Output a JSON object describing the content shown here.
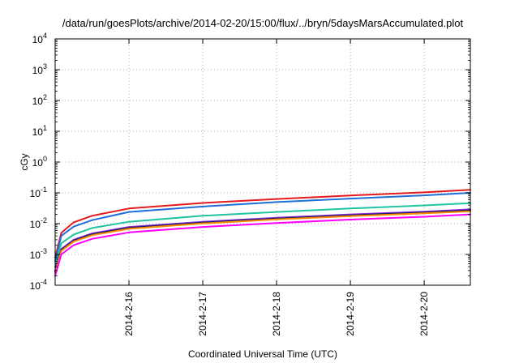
{
  "chart_data": {
    "type": "line",
    "title": "/data/run/goesPlots/archive/2014-02-20/15:00/flux/../bryn/5daysMarsAccumulated.plot",
    "xlabel": "Coordinated Universal Time (UTC)",
    "ylabel": "cGy",
    "yscale": "log",
    "ylim": [
      0.0001,
      10000
    ],
    "y_ticks": [
      {
        "base": "10",
        "exp": "-4"
      },
      {
        "base": "10",
        "exp": "-3"
      },
      {
        "base": "10",
        "exp": "-2"
      },
      {
        "base": "10",
        "exp": "-1"
      },
      {
        "base": "10",
        "exp": "0"
      },
      {
        "base": "10",
        "exp": "1"
      },
      {
        "base": "10",
        "exp": "2"
      },
      {
        "base": "10",
        "exp": "3"
      },
      {
        "base": "10",
        "exp": "4"
      }
    ],
    "xlim": [
      "2014-02-15 00:00",
      "2014-02-20 15:00"
    ],
    "x_ticks": [
      "2014-2-16",
      "2014-2-17",
      "2014-2-18",
      "2014-2-19",
      "2014-2-20"
    ],
    "grid": true,
    "x": [
      "2014-02-15 00:00",
      "2014-02-15 02:00",
      "2014-02-15 06:00",
      "2014-02-15 12:00",
      "2014-02-16 00:00",
      "2014-02-17 00:00",
      "2014-02-18 00:00",
      "2014-02-19 00:00",
      "2014-02-20 00:00",
      "2014-02-20 15:00"
    ],
    "series": [
      {
        "color": "#e41a1c",
        "values": [
          0.0008,
          0.005,
          0.011,
          0.018,
          0.031,
          0.047,
          0.063,
          0.082,
          0.104,
          0.125
        ]
      },
      {
        "color": "#1f6fd8",
        "values": [
          0.0006,
          0.004,
          0.008,
          0.013,
          0.024,
          0.036,
          0.05,
          0.065,
          0.083,
          0.1
        ]
      },
      {
        "color": "#20c4a0",
        "values": [
          0.0004,
          0.0023,
          0.0044,
          0.0072,
          0.0115,
          0.018,
          0.024,
          0.031,
          0.039,
          0.046
        ]
      },
      {
        "color": "#8a2be2",
        "values": [
          0.0003,
          0.0015,
          0.003,
          0.0048,
          0.0078,
          0.0115,
          0.0155,
          0.02,
          0.0245,
          0.029
        ]
      },
      {
        "color": "#1c1c5e",
        "values": [
          0.00028,
          0.0014,
          0.0028,
          0.0045,
          0.0073,
          0.0108,
          0.0146,
          0.0187,
          0.0231,
          0.027
        ]
      },
      {
        "color": "#ff8c00",
        "values": [
          0.00025,
          0.0013,
          0.0026,
          0.0042,
          0.0068,
          0.0101,
          0.0137,
          0.0175,
          0.0216,
          0.025
        ]
      },
      {
        "color": "#ff00ff",
        "values": [
          0.0002,
          0.001,
          0.002,
          0.0032,
          0.0052,
          0.0078,
          0.0105,
          0.0135,
          0.0167,
          0.02
        ]
      }
    ]
  }
}
